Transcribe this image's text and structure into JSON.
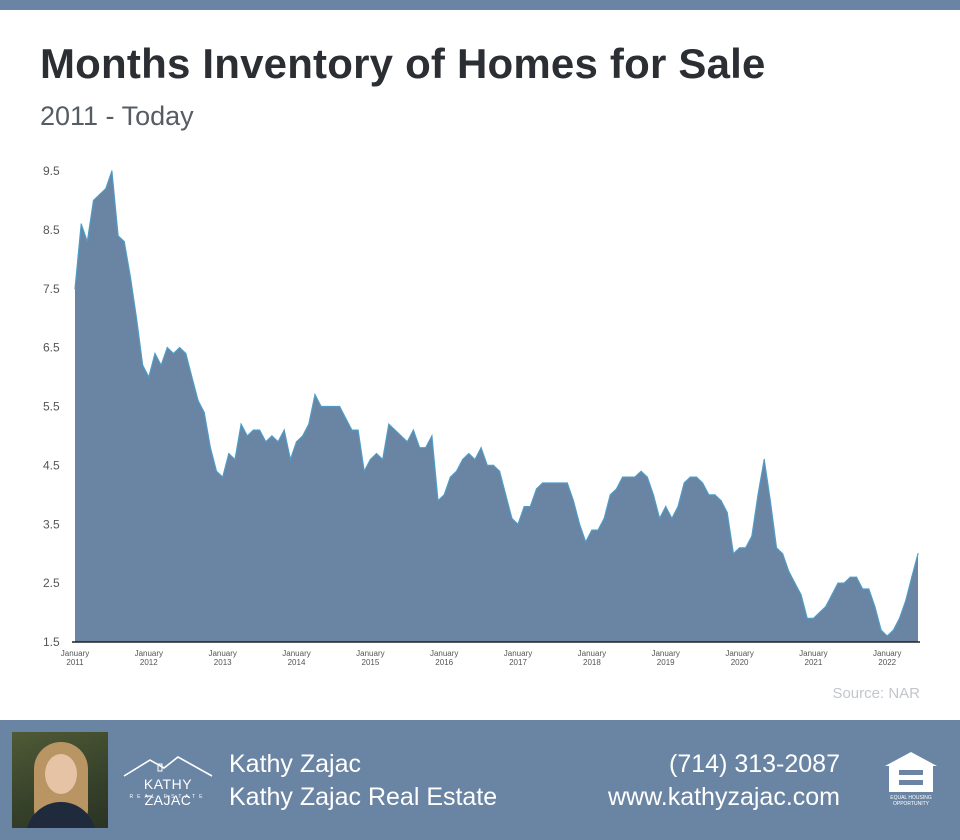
{
  "header": {
    "title": "Months Inventory of Homes for Sale",
    "subtitle": "2011 - Today"
  },
  "colors": {
    "accent": "#6a84a3",
    "area_fill": "#6a84a3",
    "area_line": "#4f9cc6",
    "title": "#2b2e33"
  },
  "chart_data": {
    "type": "area",
    "title": "Months Inventory of Homes for Sale",
    "subtitle": "2011 - Today",
    "xlabel": "",
    "ylabel": "",
    "x_start": "2011-01",
    "x_end": "2022-05",
    "ylim": [
      1.5,
      9.5
    ],
    "y_ticks": [
      "1.5",
      "2.5",
      "3.5",
      "4.5",
      "5.5",
      "6.5",
      "7.5",
      "8.5",
      "9.5"
    ],
    "x_tick_labels": [
      {
        "month": "January",
        "year": "2011"
      },
      {
        "month": "January",
        "year": "2012"
      },
      {
        "month": "January",
        "year": "2013"
      },
      {
        "month": "January",
        "year": "2014"
      },
      {
        "month": "January",
        "year": "2015"
      },
      {
        "month": "January",
        "year": "2016"
      },
      {
        "month": "January",
        "year": "2017"
      },
      {
        "month": "January",
        "year": "2018"
      },
      {
        "month": "January",
        "year": "2019"
      },
      {
        "month": "January",
        "year": "2020"
      },
      {
        "month": "January",
        "year": "2021"
      },
      {
        "month": "January",
        "year": "2022"
      }
    ],
    "grid": false,
    "legend": "none",
    "series": [
      {
        "values": [
          7.5,
          8.6,
          8.3,
          9.0,
          9.1,
          9.2,
          9.5,
          8.4,
          8.3,
          7.7,
          7.0,
          6.2,
          6.0,
          6.4,
          6.2,
          6.5,
          6.4,
          6.5,
          6.4,
          6.0,
          5.6,
          5.4,
          4.8,
          4.4,
          4.3,
          4.7,
          4.6,
          5.2,
          5.0,
          5.1,
          5.1,
          4.9,
          5.0,
          4.9,
          5.1,
          4.6,
          4.9,
          5.0,
          5.2,
          5.7,
          5.5,
          5.5,
          5.5,
          5.5,
          5.3,
          5.1,
          5.1,
          4.4,
          4.6,
          4.7,
          4.6,
          5.2,
          5.1,
          5.0,
          4.9,
          5.1,
          4.8,
          4.8,
          5.0,
          3.9,
          4.0,
          4.3,
          4.4,
          4.6,
          4.7,
          4.6,
          4.8,
          4.5,
          4.5,
          4.4,
          4.0,
          3.6,
          3.5,
          3.8,
          3.8,
          4.1,
          4.2,
          4.2,
          4.2,
          4.2,
          4.2,
          3.9,
          3.5,
          3.2,
          3.4,
          3.4,
          3.6,
          4.0,
          4.1,
          4.3,
          4.3,
          4.3,
          4.4,
          4.3,
          4.0,
          3.6,
          3.8,
          3.6,
          3.8,
          4.2,
          4.3,
          4.3,
          4.2,
          4.0,
          4.0,
          3.9,
          3.7,
          3.0,
          3.1,
          3.1,
          3.3,
          4.0,
          4.6,
          3.9,
          3.1,
          3.0,
          2.7,
          2.5,
          2.3,
          1.9,
          1.9,
          2.0,
          2.1,
          2.3,
          2.5,
          2.5,
          2.6,
          2.6,
          2.4,
          2.4,
          2.1,
          1.7,
          1.6,
          1.7,
          1.9,
          2.2,
          2.6,
          3.0
        ]
      }
    ]
  },
  "source": "Source: NAR",
  "footer": {
    "logo_name": "KATHY ZAJAC",
    "logo_sub": "REAL ESTATE",
    "agent_name": "Kathy Zajac",
    "company": "Kathy Zajac Real Estate",
    "phone": "(714) 313-2087",
    "website": "www.kathyzajac.com",
    "eho_line1": "EQUAL HOUSING",
    "eho_line2": "OPPORTUNITY"
  },
  "icons": {
    "agent_photo": "agent-photo",
    "logo": "house-roof-logo",
    "eho": "equal-housing-opportunity-icon"
  }
}
